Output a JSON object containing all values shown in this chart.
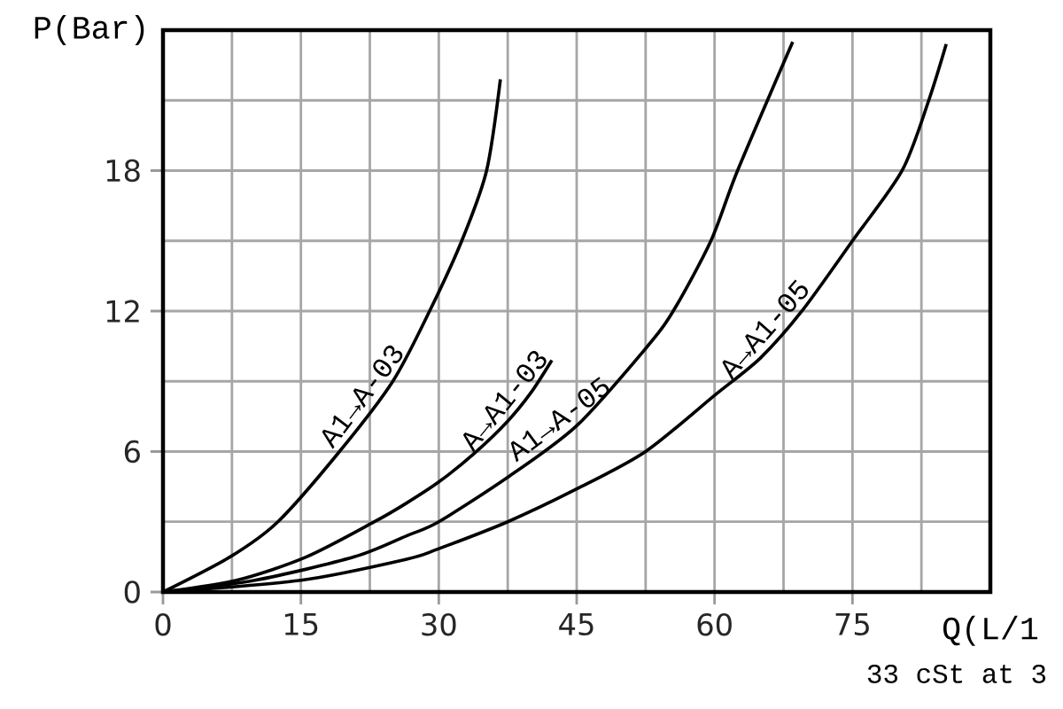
{
  "chart_data": {
    "type": "line",
    "xlabel": "Q(L/1",
    "ylabel": "P(Bar)",
    "xlim": [
      0,
      90
    ],
    "ylim": [
      0,
      24
    ],
    "xticks": [
      0,
      {
        "value": 7.5,
        "label": null
      },
      15,
      {
        "value": 22.5,
        "label": null
      },
      30,
      {
        "value": 37.5,
        "label": null
      },
      45,
      {
        "value": 52.5,
        "label": null
      },
      60,
      {
        "value": 67.5,
        "label": null
      },
      75,
      {
        "value": 82.5,
        "label": null
      }
    ],
    "yticks": [
      0,
      {
        "value": 3,
        "label": null
      },
      6,
      {
        "value": 9,
        "label": null
      },
      12,
      {
        "value": 15,
        "label": null
      },
      18,
      {
        "value": 21,
        "label": null
      }
    ],
    "grid": true,
    "legend": false,
    "marker": "none",
    "line_style": "solid",
    "series": [
      {
        "name": "A1→A-03",
        "color": "#000000",
        "x": [
          0,
          7.3,
          12.5,
          19.2,
          25,
          29,
          32.5,
          35.2,
          36.7
        ],
        "values": [
          0,
          1.5,
          3,
          6,
          9,
          12,
          15,
          18,
          21.9
        ]
      },
      {
        "name": "A→A1-03",
        "color": "#000000",
        "x": [
          0,
          8,
          15.6,
          23,
          26.5,
          30,
          33.8,
          37.5,
          40,
          42.3
        ],
        "values": [
          0,
          0.5,
          1.5,
          3,
          3.8,
          4.7,
          5.9,
          7.3,
          8.5,
          9.9
        ]
      },
      {
        "name": "A1→A-05",
        "color": "#000000",
        "x": [
          0,
          10,
          20.8,
          26.5,
          30,
          37.5,
          45,
          52.5,
          55.5,
          59.6,
          62.5,
          68.5
        ],
        "values": [
          0,
          0.5,
          1.5,
          2.4,
          3,
          4.9,
          7.1,
          10.4,
          12,
          15,
          18,
          23.5
        ]
      },
      {
        "name": "A→A1-05",
        "color": "#000000",
        "x": [
          0,
          15,
          26.5,
          30,
          37.5,
          45,
          52.5,
          60,
          65,
          69.5,
          75,
          80.4,
          83.3,
          85.2
        ],
        "values": [
          0,
          0.5,
          1.4,
          1.85,
          3,
          4.4,
          6,
          8.4,
          10,
          12,
          15,
          18,
          21,
          23.4
        ]
      }
    ],
    "annotations": [
      "33 cSt at 3"
    ]
  }
}
